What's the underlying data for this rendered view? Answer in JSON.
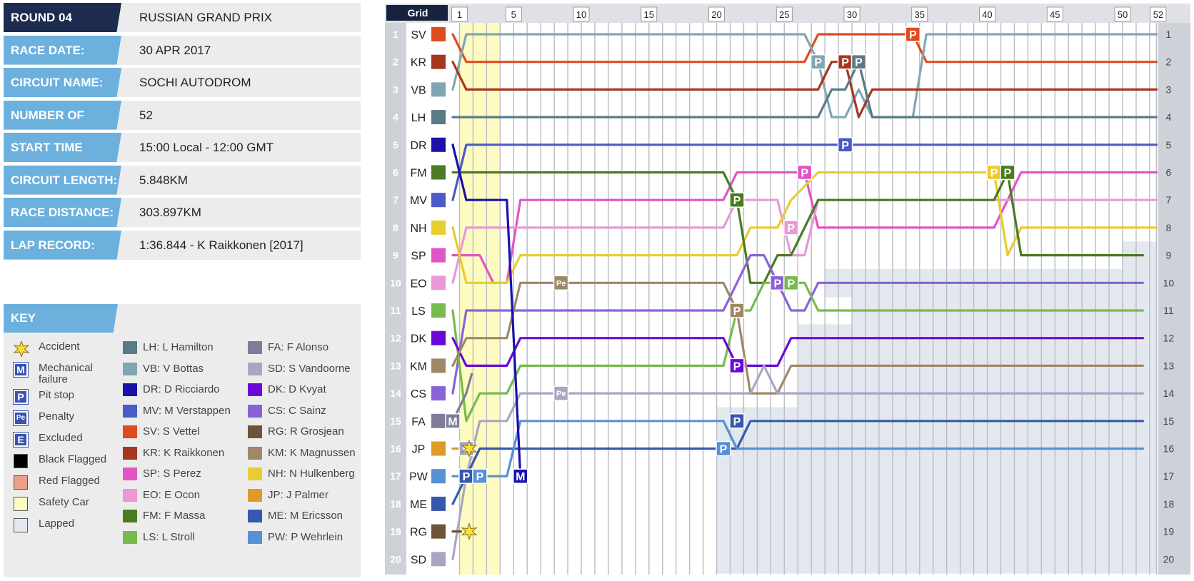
{
  "info": [
    {
      "label": "ROUND 04",
      "value": "RUSSIAN GRAND PRIX"
    },
    {
      "label": "RACE DATE:",
      "value": "30 APR 2017"
    },
    {
      "label": "CIRCUIT NAME:",
      "value": "SOCHI AUTODROM"
    },
    {
      "label": "NUMBER OF LAPS:",
      "value": "52"
    },
    {
      "label": "START TIME",
      "value": "15:00 Local - 12:00 GMT"
    },
    {
      "label": "CIRCUIT LENGTH:",
      "value": "5.848KM"
    },
    {
      "label": "RACE DISTANCE:",
      "value": "303.897KM"
    },
    {
      "label": "LAP RECORD:",
      "value": "1:36.844 - K Raikkonen [2017]"
    }
  ],
  "key": {
    "title": "KEY",
    "items": [
      {
        "label": "Accident",
        "type": "accident"
      },
      {
        "label": "Mechanical failure",
        "type": "letter",
        "letter": "M"
      },
      {
        "label": "Pit stop",
        "type": "letter",
        "letter": "P"
      },
      {
        "label": "Penalty",
        "type": "letter",
        "letter": "Pe"
      },
      {
        "label": "Excluded",
        "type": "letter",
        "letter": "E"
      },
      {
        "label": "Black Flagged",
        "type": "box",
        "color": "#000000"
      },
      {
        "label": "Red Flagged",
        "type": "box",
        "color": "#e8a08a"
      },
      {
        "label": "Safety Car",
        "type": "box",
        "color": "#fdfbc0"
      },
      {
        "label": "Lapped",
        "type": "box",
        "color": "#e3e8ef"
      }
    ]
  },
  "drivers_legend": [
    {
      "label": "LH: L Hamilton",
      "color": "#5a7a86"
    },
    {
      "label": "VB: V Bottas",
      "color": "#7fa7b2"
    },
    {
      "label": "DR: D Ricciardo",
      "color": "#1a12a8"
    },
    {
      "label": "MV: M Verstappen",
      "color": "#4b5ac8"
    },
    {
      "label": "SV: S Vettel",
      "color": "#e04a20"
    },
    {
      "label": "KR: K Raikkonen",
      "color": "#a53620"
    },
    {
      "label": "SP: S Perez",
      "color": "#e055c4"
    },
    {
      "label": "EO: E Ocon",
      "color": "#ea98d6"
    },
    {
      "label": "FM: F Massa",
      "color": "#4a7a22"
    },
    {
      "label": "LS: L Stroll",
      "color": "#76bb4c"
    },
    {
      "label": "FA: F Alonso",
      "color": "#7e7c98"
    },
    {
      "label": "SD: S Vandoorne",
      "color": "#a8a6c4"
    },
    {
      "label": "DK: D Kvyat",
      "color": "#6a08d8"
    },
    {
      "label": "CS: C Sainz",
      "color": "#8a62d8"
    },
    {
      "label": "RG: R Grosjean",
      "color": "#6b5438"
    },
    {
      "label": "KM: K Magnussen",
      "color": "#9e8868"
    },
    {
      "label": "NH: N Hulkenberg",
      "color": "#e8cc30"
    },
    {
      "label": "JP: J Palmer",
      "color": "#e09a2a"
    },
    {
      "label": "ME: M Ericsson",
      "color": "#3658ae"
    },
    {
      "label": "PW: P Wehrlein",
      "color": "#5890d6"
    }
  ],
  "chart_data": {
    "type": "line",
    "grid_label": "Grid",
    "laps": 52,
    "x_ticks": [
      1,
      5,
      10,
      15,
      20,
      25,
      30,
      35,
      40,
      45,
      50,
      52
    ],
    "positions": [
      1,
      2,
      3,
      4,
      5,
      6,
      7,
      8,
      9,
      10,
      11,
      12,
      13,
      14,
      15,
      16,
      17,
      18,
      19,
      20
    ],
    "safety_car_laps": [
      1,
      3
    ],
    "grid": [
      "SV",
      "KR",
      "VB",
      "LH",
      "DR",
      "FM",
      "MV",
      "NH",
      "SP",
      "EO",
      "LS",
      "DK",
      "KM",
      "CS",
      "FA",
      "JP",
      "PW",
      "ME",
      "RG",
      "SD"
    ],
    "lapped_from_lap": [
      null,
      null,
      null,
      null,
      null,
      null,
      null,
      null,
      50,
      28,
      30,
      26,
      26,
      26,
      20,
      20,
      20,
      20,
      20,
      20
    ],
    "series": [
      {
        "code": "SV",
        "color": "#e04a20",
        "points": [
          [
            0,
            1
          ],
          [
            1,
            2
          ],
          [
            26,
            2
          ],
          [
            27,
            1
          ],
          [
            34,
            1
          ],
          [
            35,
            2
          ],
          [
            52,
            2
          ]
        ],
        "status": "finished"
      },
      {
        "code": "VB",
        "color": "#7fa7b2",
        "points": [
          [
            0,
            3
          ],
          [
            1,
            1
          ],
          [
            26,
            1
          ],
          [
            27,
            2
          ],
          [
            28,
            4
          ],
          [
            29,
            4
          ],
          [
            30,
            3
          ],
          [
            31,
            4
          ],
          [
            34,
            4
          ],
          [
            35,
            1
          ],
          [
            52,
            1
          ]
        ],
        "status": "finished"
      },
      {
        "code": "KR",
        "color": "#a53620",
        "points": [
          [
            0,
            2
          ],
          [
            1,
            3
          ],
          [
            27,
            3
          ],
          [
            28,
            2
          ],
          [
            29,
            2
          ],
          [
            30,
            4
          ],
          [
            31,
            3
          ],
          [
            52,
            3
          ]
        ],
        "status": "finished"
      },
      {
        "code": "LH",
        "color": "#5a7a86",
        "points": [
          [
            0,
            4
          ],
          [
            27,
            4
          ],
          [
            28,
            3
          ],
          [
            29,
            3
          ],
          [
            30,
            2
          ],
          [
            31,
            4
          ],
          [
            52,
            4
          ]
        ],
        "status": "finished"
      },
      {
        "code": "MV",
        "color": "#4b5ac8",
        "points": [
          [
            0,
            7
          ],
          [
            1,
            5
          ],
          [
            52,
            5
          ]
        ],
        "status": "finished"
      },
      {
        "code": "SP",
        "color": "#e055c4",
        "points": [
          [
            0,
            9
          ],
          [
            2,
            9
          ],
          [
            3,
            10
          ],
          [
            4,
            10
          ],
          [
            5,
            7
          ],
          [
            20,
            7
          ],
          [
            21,
            6
          ],
          [
            25,
            6
          ],
          [
            26,
            6
          ],
          [
            27,
            8
          ],
          [
            40,
            8
          ],
          [
            41,
            7
          ],
          [
            42,
            6
          ],
          [
            52,
            6
          ]
        ],
        "status": "finished"
      },
      {
        "code": "EO",
        "color": "#ea98d6",
        "points": [
          [
            0,
            10
          ],
          [
            1,
            8
          ],
          [
            5,
            8
          ],
          [
            20,
            8
          ],
          [
            21,
            7
          ],
          [
            24,
            7
          ],
          [
            25,
            9
          ],
          [
            26,
            9
          ],
          [
            27,
            7
          ],
          [
            52,
            7
          ]
        ],
        "status": "finished"
      },
      {
        "code": "NH",
        "color": "#e8cc30",
        "points": [
          [
            0,
            8
          ],
          [
            1,
            10
          ],
          [
            4,
            10
          ],
          [
            5,
            9
          ],
          [
            21,
            9
          ],
          [
            22,
            8
          ],
          [
            24,
            8
          ],
          [
            25,
            7
          ],
          [
            27,
            6
          ],
          [
            40,
            6
          ],
          [
            41,
            9
          ],
          [
            42,
            8
          ],
          [
            52,
            8
          ]
        ],
        "status": "finished"
      },
      {
        "code": "FM",
        "color": "#4a7a22",
        "points": [
          [
            0,
            6
          ],
          [
            20,
            6
          ],
          [
            21,
            7
          ],
          [
            22,
            10
          ],
          [
            23,
            10
          ],
          [
            24,
            9
          ],
          [
            25,
            9
          ],
          [
            27,
            7
          ],
          [
            40,
            7
          ],
          [
            41,
            6
          ],
          [
            42,
            9
          ],
          [
            51,
            9
          ]
        ],
        "status": "finished"
      },
      {
        "code": "CS",
        "color": "#8a62d8",
        "points": [
          [
            0,
            14
          ],
          [
            1,
            11
          ],
          [
            2,
            11
          ],
          [
            4,
            11
          ],
          [
            5,
            11
          ],
          [
            20,
            11
          ],
          [
            21,
            10
          ],
          [
            22,
            9
          ],
          [
            23,
            9
          ],
          [
            24,
            10
          ],
          [
            25,
            11
          ],
          [
            26,
            11
          ],
          [
            27,
            10
          ],
          [
            51,
            10
          ]
        ],
        "status": "finished"
      },
      {
        "code": "LS",
        "color": "#76bb4c",
        "points": [
          [
            0,
            11
          ],
          [
            1,
            15
          ],
          [
            2,
            14
          ],
          [
            4,
            14
          ],
          [
            5,
            13
          ],
          [
            20,
            13
          ],
          [
            21,
            11
          ],
          [
            22,
            11
          ],
          [
            23,
            10
          ],
          [
            25,
            10
          ],
          [
            26,
            10
          ],
          [
            27,
            11
          ],
          [
            51,
            11
          ]
        ],
        "status": "finished"
      },
      {
        "code": "DK",
        "color": "#6a08d8",
        "points": [
          [
            0,
            12
          ],
          [
            1,
            13
          ],
          [
            4,
            13
          ],
          [
            5,
            12
          ],
          [
            20,
            12
          ],
          [
            21,
            13
          ],
          [
            24,
            13
          ],
          [
            25,
            12
          ],
          [
            51,
            12
          ]
        ],
        "status": "finished"
      },
      {
        "code": "KM",
        "color": "#9e8868",
        "points": [
          [
            0,
            13
          ],
          [
            1,
            12
          ],
          [
            4,
            12
          ],
          [
            5,
            10
          ],
          [
            20,
            10
          ],
          [
            21,
            11
          ],
          [
            22,
            14
          ],
          [
            24,
            14
          ],
          [
            25,
            13
          ],
          [
            51,
            13
          ]
        ],
        "status": "finished"
      },
      {
        "code": "SD",
        "color": "#a8a6c4",
        "points": [
          [
            0,
            20
          ],
          [
            1,
            17
          ],
          [
            2,
            15
          ],
          [
            4,
            15
          ],
          [
            5,
            14
          ],
          [
            21,
            14
          ],
          [
            22,
            14
          ],
          [
            23,
            13
          ],
          [
            24,
            14
          ],
          [
            51,
            14
          ]
        ],
        "status": "finished"
      },
      {
        "code": "ME",
        "color": "#3658ae",
        "points": [
          [
            0,
            18
          ],
          [
            1,
            17
          ],
          [
            2,
            16
          ],
          [
            21,
            16
          ],
          [
            22,
            15
          ],
          [
            51,
            15
          ]
        ],
        "status": "finished"
      },
      {
        "code": "PW",
        "color": "#5890d6",
        "points": [
          [
            0,
            17
          ],
          [
            1,
            17
          ],
          [
            2,
            17
          ],
          [
            4,
            17
          ],
          [
            5,
            15
          ],
          [
            20,
            15
          ],
          [
            21,
            16
          ],
          [
            51,
            16
          ]
        ],
        "status": "finished"
      },
      {
        "code": "DR",
        "color": "#1a12a8",
        "points": [
          [
            0,
            5
          ],
          [
            1,
            7
          ],
          [
            4,
            7
          ],
          [
            5,
            17
          ]
        ],
        "status": "retired"
      },
      {
        "code": "FA",
        "color": "#7e7c98",
        "points": [
          [
            0,
            15
          ],
          [
            1,
            14
          ],
          [
            1.4,
            13.3
          ]
        ],
        "status": "retired"
      },
      {
        "code": "JP",
        "color": "#e09a2a",
        "points": [
          [
            0,
            16
          ],
          [
            0.6,
            16
          ]
        ],
        "status": "retired"
      },
      {
        "code": "RG",
        "color": "#6b5438",
        "points": [
          [
            0,
            19
          ],
          [
            0.6,
            19
          ]
        ],
        "status": "retired"
      }
    ],
    "markers": [
      {
        "code": "SV",
        "lap": 34,
        "pos": 1,
        "type": "P"
      },
      {
        "code": "VB",
        "lap": 27,
        "pos": 2,
        "type": "P"
      },
      {
        "code": "KR",
        "lap": 29,
        "pos": 2,
        "type": "P"
      },
      {
        "code": "LH",
        "lap": 30,
        "pos": 2,
        "type": "P"
      },
      {
        "code": "MV",
        "lap": 29,
        "pos": 5,
        "type": "P"
      },
      {
        "code": "SP",
        "lap": 26,
        "pos": 6,
        "type": "P"
      },
      {
        "code": "NH",
        "lap": 40,
        "pos": 6,
        "type": "P"
      },
      {
        "code": "FM",
        "lap": 41,
        "pos": 6,
        "type": "P"
      },
      {
        "code": "FM",
        "lap": 21,
        "pos": 7,
        "type": "P"
      },
      {
        "code": "EO",
        "lap": 25,
        "pos": 8,
        "type": "P"
      },
      {
        "code": "CS",
        "lap": 24,
        "pos": 10,
        "type": "P"
      },
      {
        "code": "LS",
        "lap": 25,
        "pos": 10,
        "type": "P"
      },
      {
        "code": "KM",
        "lap": 21,
        "pos": 11,
        "type": "P"
      },
      {
        "code": "DK",
        "lap": 21,
        "pos": 13,
        "type": "P"
      },
      {
        "code": "ME",
        "lap": 21,
        "pos": 15,
        "type": "P"
      },
      {
        "code": "PW",
        "lap": 20,
        "pos": 16,
        "type": "P"
      },
      {
        "code": "SD",
        "lap": 1,
        "pos": 16,
        "type": "P"
      },
      {
        "code": "ME",
        "lap": 1,
        "pos": 17,
        "type": "P"
      },
      {
        "code": "PW",
        "lap": 2,
        "pos": 17,
        "type": "P"
      },
      {
        "code": "DR",
        "lap": 5,
        "pos": 17,
        "type": "M"
      },
      {
        "code": "KM",
        "lap": 8,
        "pos": 10,
        "type": "Pe"
      },
      {
        "code": "SD",
        "lap": 8,
        "pos": 14,
        "type": "Pe"
      },
      {
        "code": "FA",
        "lap": 0,
        "pos": 15,
        "type": "M"
      },
      {
        "code": "JP",
        "lap": 0,
        "pos": 16,
        "type": "accident"
      },
      {
        "code": "RG",
        "lap": 0,
        "pos": 19,
        "type": "accident"
      }
    ]
  }
}
